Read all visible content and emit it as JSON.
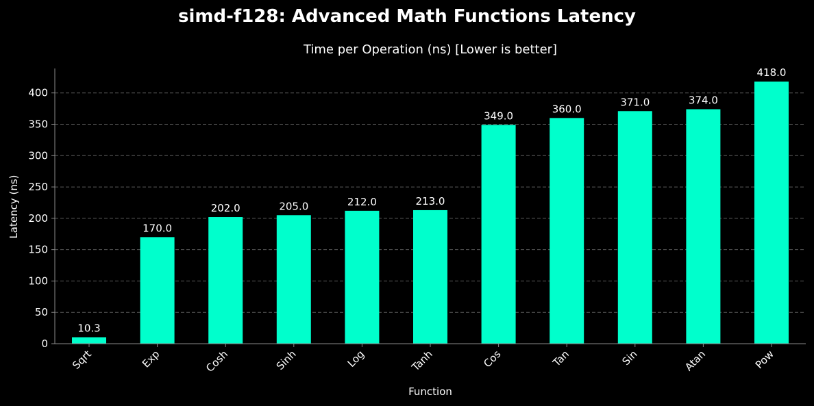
{
  "chart_data": {
    "type": "bar",
    "title": "simd-f128: Advanced Math Functions Latency",
    "subtitle": "Time per Operation (ns) [Lower is better]",
    "xlabel": "Function",
    "ylabel": "Latency (ns)",
    "categories": [
      "Sqrt",
      "Exp",
      "Cosh",
      "Sinh",
      "Log",
      "Tanh",
      "Cos",
      "Tan",
      "Sin",
      "Atan",
      "Pow"
    ],
    "values": [
      10.3,
      170.0,
      202.0,
      205.0,
      212.0,
      213.0,
      349.0,
      360.0,
      371.0,
      374.0,
      418.0
    ],
    "value_labels": [
      "10.3",
      "170.0",
      "202.0",
      "205.0",
      "212.0",
      "213.0",
      "349.0",
      "360.0",
      "371.0",
      "374.0",
      "418.0"
    ],
    "ylim": [
      0,
      439
    ],
    "yticks": [
      0,
      50,
      100,
      150,
      200,
      250,
      300,
      350,
      400
    ],
    "grid": "y-dashed",
    "x_tick_rotation_deg": 45,
    "colors": {
      "bar": "#00ffcc",
      "background": "#000000",
      "text": "#ffffff",
      "grid": "#5a5a5a",
      "axis": "#8a8a8a"
    }
  }
}
